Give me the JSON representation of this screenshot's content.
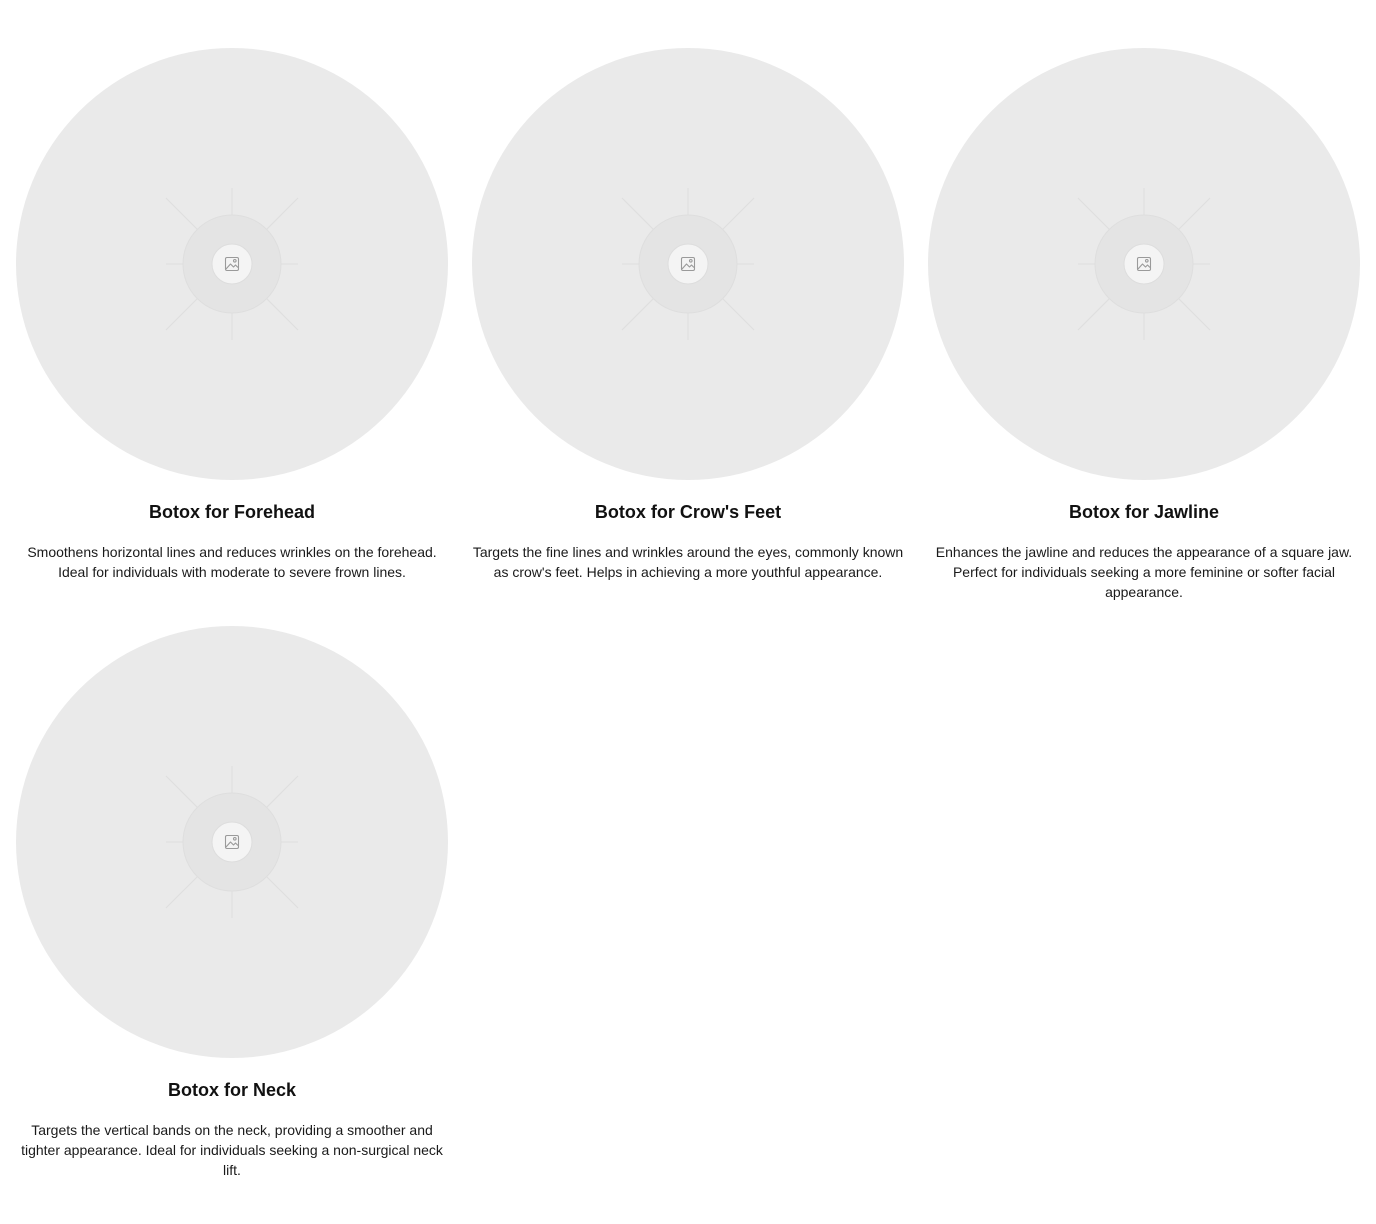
{
  "colors": {
    "placeholder_bg": "#eaeaea",
    "title": "#111111",
    "text": "#1a1a1a"
  },
  "cards": [
    {
      "image_icon": "image-placeholder-icon",
      "title": "Botox for Forehead",
      "description": "Smoothens horizontal lines and reduces wrinkles on the forehead. Ideal for individuals with moderate to severe frown lines."
    },
    {
      "image_icon": "image-placeholder-icon",
      "title": "Botox for Crow's Feet",
      "description": "Targets the fine lines and wrinkles around the eyes, commonly known as crow's feet. Helps in achieving a more youthful appearance."
    },
    {
      "image_icon": "image-placeholder-icon",
      "title": "Botox for Jawline",
      "description": "Enhances the jawline and reduces the appearance of a square jaw. Perfect for individuals seeking a more feminine or softer facial appearance."
    },
    {
      "image_icon": "image-placeholder-icon",
      "title": "Botox for Neck",
      "description": "Targets the vertical bands on the neck, providing a smoother and tighter appearance. Ideal for individuals seeking a non-surgical neck lift."
    }
  ]
}
